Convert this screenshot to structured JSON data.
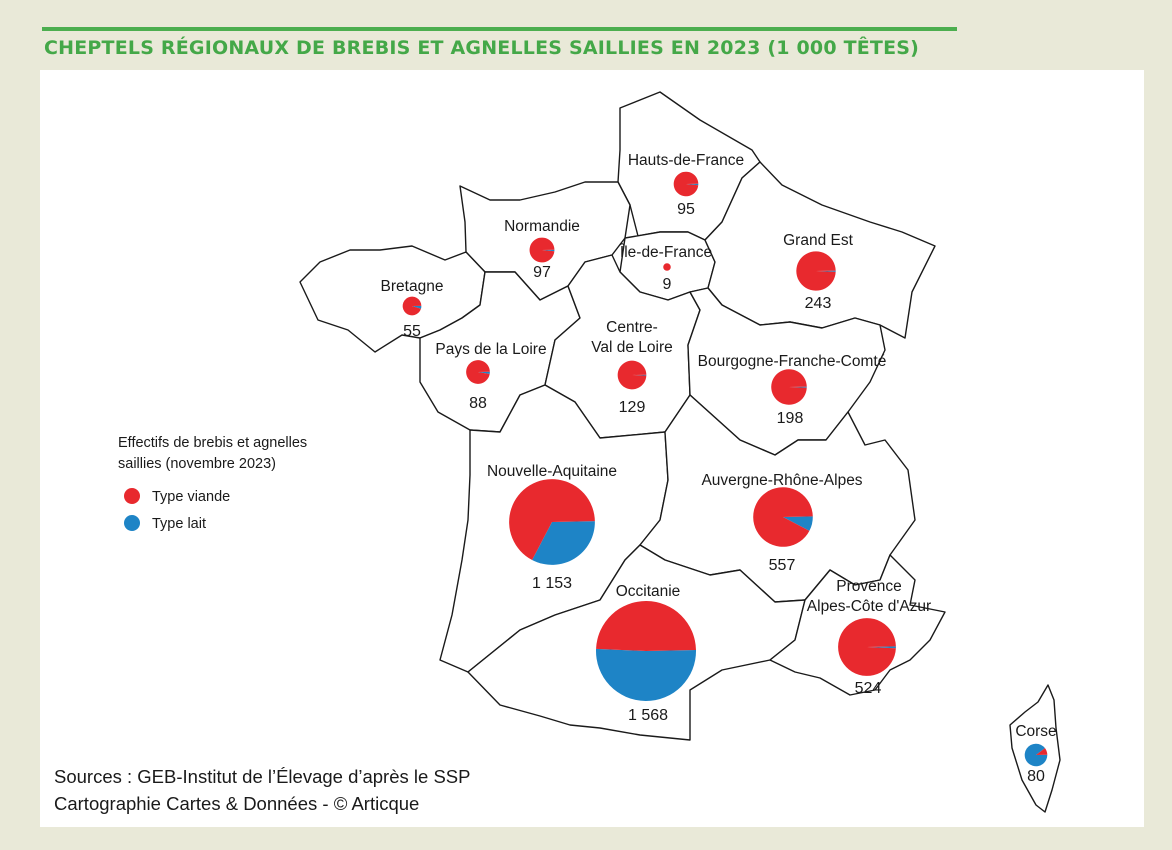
{
  "title": "CHEPTELS RÉGIONAUX DE BREBIS ET AGNELLES SAILLIES EN 2023 (1 000 TÊTES)",
  "colors": {
    "viande": "#e8292e",
    "lait": "#1e84c6",
    "title_green": "#44a848",
    "background": "#e9e9d8"
  },
  "legend": {
    "title_line1": "Effectifs de brebis et agnelles",
    "title_line2": "saillies (novembre 2023)",
    "items": [
      {
        "label": "Type viande",
        "color": "#e8292e"
      },
      {
        "label": "Type lait",
        "color": "#1e84c6"
      }
    ]
  },
  "regions": [
    {
      "name": "Hauts-de-France",
      "value_label": "95",
      "total": 95,
      "lait_share": 0.02
    },
    {
      "name": "Normandie",
      "value_label": "97",
      "total": 97,
      "lait_share": 0.02
    },
    {
      "name": "Île-de-France",
      "value_label": "9",
      "total": 9,
      "lait_share": 0.0
    },
    {
      "name": "Grand Est",
      "value_label": "243",
      "total": 243,
      "lait_share": 0.01
    },
    {
      "name": "Bretagne",
      "value_label": "55",
      "total": 55,
      "lait_share": 0.05
    },
    {
      "name": "Pays de la Loire",
      "value_label": "88",
      "total": 88,
      "lait_share": 0.03
    },
    {
      "name_line1": "Centre-",
      "name_line2": "Val de Loire",
      "value_label": "129",
      "total": 129,
      "lait_share": 0.01
    },
    {
      "name": "Bourgogne-Franche-Comté",
      "value_label": "198",
      "total": 198,
      "lait_share": 0.01
    },
    {
      "name": "Nouvelle-Aquitaine",
      "value_label": "1 153",
      "total": 1153,
      "lait_share": 0.33
    },
    {
      "name": "Auvergne-Rhône-Alpes",
      "value_label": "557",
      "total": 557,
      "lait_share": 0.08
    },
    {
      "name": "Occitanie",
      "value_label": "1 568",
      "total": 1568,
      "lait_share": 0.51
    },
    {
      "name_line1": "Provence",
      "name_line2": "Alpes-Côte d'Azur",
      "value_label": "524",
      "total": 524,
      "lait_share": 0.01
    },
    {
      "name": "Corse",
      "value_label": "80",
      "total": 80,
      "lait_share": 0.9
    }
  ],
  "sources_line1": "Sources : GEB-Institut de l’Élevage d’après le SSP",
  "sources_line2": "Cartographie Cartes & Données - © Articque"
}
